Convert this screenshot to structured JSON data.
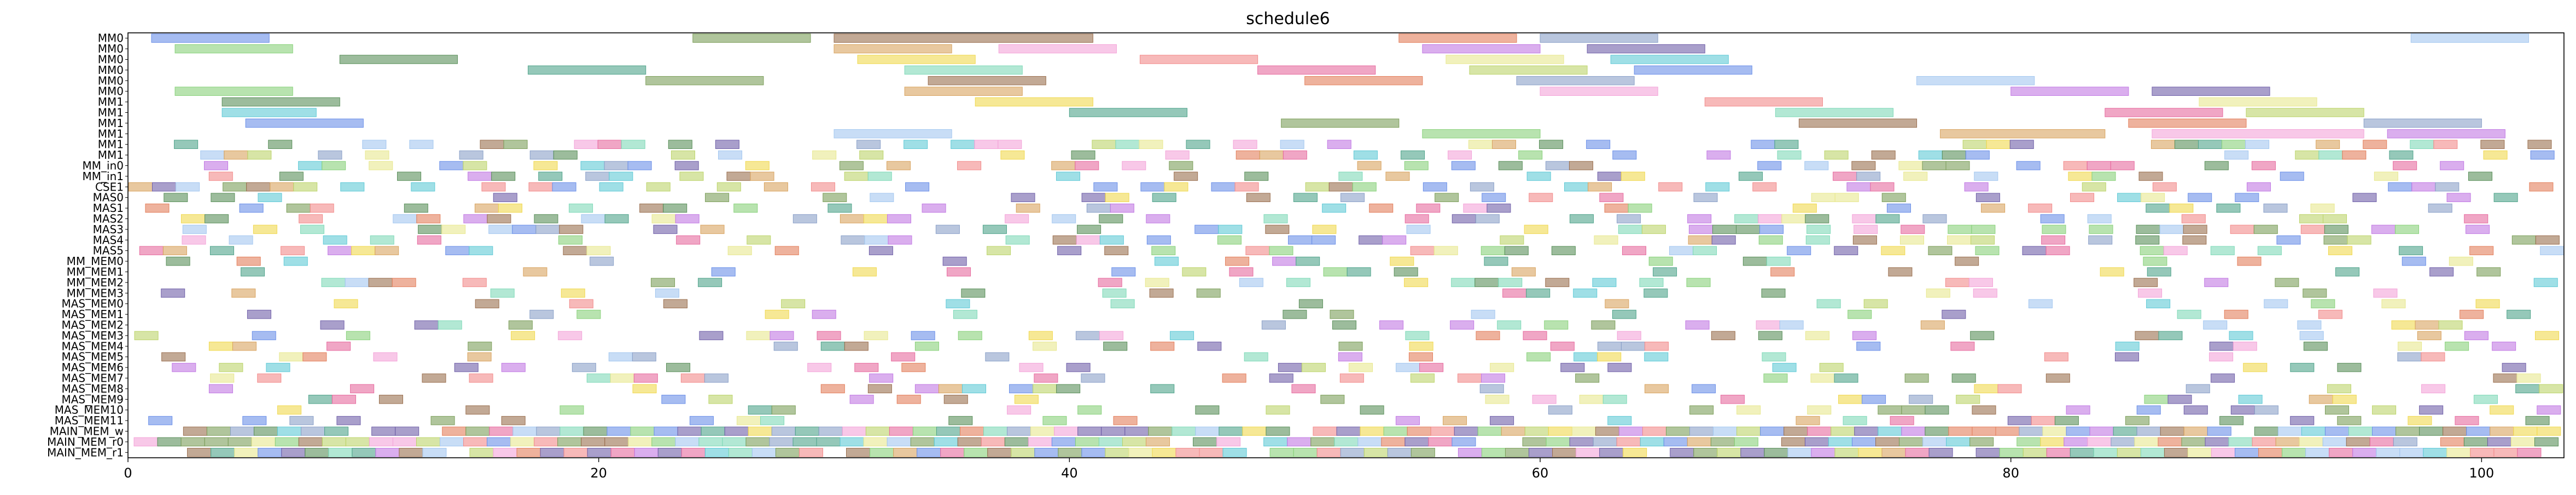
{
  "chart_data": {
    "type": "gantt",
    "title": "schedule6",
    "xlabel": "",
    "ylabel": "",
    "xlim": [
      0,
      103.5
    ],
    "grid": false,
    "legend": "none",
    "x_ticks": [
      0,
      20,
      40,
      60,
      80,
      100
    ],
    "rows": [
      "MM0",
      "MM0",
      "MM0",
      "MM0",
      "MM0",
      "MM0",
      "MM1",
      "MM1",
      "MM1",
      "MM1",
      "MM1",
      "MM1",
      "MM_in0",
      "MM_in1",
      "CSE1",
      "MAS0",
      "MAS1",
      "MAS2",
      "MAS3",
      "MAS4",
      "MAS5",
      "MM_MEM0",
      "MM_MEM1",
      "MM_MEM2",
      "MM_MEM3",
      "MAS_MEM0",
      "MAS_MEM1",
      "MAS_MEM2",
      "MAS_MEM3",
      "MAS_MEM4",
      "MAS_MEM5",
      "MAS_MEM6",
      "MAS_MEM7",
      "MAS_MEM8",
      "MAS_MEM9",
      "MAS_MEM10",
      "MAS_MEM11",
      "MAIN_MEM_w",
      "MAIN_MEM_r0",
      "MAIN_MEM_r1"
    ],
    "palette": [
      "#6a8fe8",
      "#e37f5c",
      "#88d17a",
      "#c178e3",
      "#f0d84f",
      "#5fc9d6",
      "#e66a9e",
      "#7c9e5a",
      "#8aa0c8",
      "#d8a35f",
      "#6f5fa8",
      "#f28b8b",
      "#4fa38a",
      "#bcd46a",
      "#9a6f4f",
      "#a3c7f0",
      "#f3a3d8",
      "#5a8f5a",
      "#e8e88f",
      "#7fd9b8"
    ],
    "bars": [
      {
        "row": 0,
        "start": 1,
        "end": 6
      },
      {
        "row": 0,
        "start": 24,
        "end": 29
      },
      {
        "row": 0,
        "start": 30,
        "end": 41
      },
      {
        "row": 0,
        "start": 54,
        "end": 59
      },
      {
        "row": 0,
        "start": 60,
        "end": 65
      },
      {
        "row": 0,
        "start": 97,
        "end": 102
      },
      {
        "row": 1,
        "start": 2,
        "end": 7
      },
      {
        "row": 1,
        "start": 30,
        "end": 35
      },
      {
        "row": 1,
        "start": 37,
        "end": 42
      },
      {
        "row": 1,
        "start": 55,
        "end": 60
      },
      {
        "row": 1,
        "start": 62,
        "end": 67
      },
      {
        "row": 2,
        "start": 9,
        "end": 14
      },
      {
        "row": 2,
        "start": 31,
        "end": 36
      },
      {
        "row": 2,
        "start": 43,
        "end": 48
      },
      {
        "row": 2,
        "start": 56,
        "end": 61
      },
      {
        "row": 2,
        "start": 63,
        "end": 68
      },
      {
        "row": 3,
        "start": 17,
        "end": 22
      },
      {
        "row": 3,
        "start": 33,
        "end": 38
      },
      {
        "row": 3,
        "start": 48,
        "end": 53
      },
      {
        "row": 3,
        "start": 57,
        "end": 62
      },
      {
        "row": 3,
        "start": 64,
        "end": 69
      },
      {
        "row": 4,
        "start": 22,
        "end": 27
      },
      {
        "row": 4,
        "start": 34,
        "end": 39
      },
      {
        "row": 4,
        "start": 50,
        "end": 55
      },
      {
        "row": 4,
        "start": 59,
        "end": 64
      },
      {
        "row": 4,
        "start": 76,
        "end": 81
      },
      {
        "row": 5,
        "start": 2,
        "end": 7
      },
      {
        "row": 5,
        "start": 33,
        "end": 38
      },
      {
        "row": 5,
        "start": 60,
        "end": 65
      },
      {
        "row": 5,
        "start": 80,
        "end": 85
      },
      {
        "row": 5,
        "start": 86,
        "end": 91
      },
      {
        "row": 6,
        "start": 4,
        "end": 9
      },
      {
        "row": 6,
        "start": 36,
        "end": 41
      },
      {
        "row": 6,
        "start": 67,
        "end": 72
      },
      {
        "row": 6,
        "start": 88,
        "end": 93
      },
      {
        "row": 7,
        "start": 4,
        "end": 8
      },
      {
        "row": 7,
        "start": 40,
        "end": 45
      },
      {
        "row": 7,
        "start": 70,
        "end": 75
      },
      {
        "row": 7,
        "start": 84,
        "end": 89
      },
      {
        "row": 7,
        "start": 90,
        "end": 95
      },
      {
        "row": 8,
        "start": 5,
        "end": 10
      },
      {
        "row": 8,
        "start": 49,
        "end": 54
      },
      {
        "row": 8,
        "start": 71,
        "end": 76
      },
      {
        "row": 8,
        "start": 85,
        "end": 90
      },
      {
        "row": 8,
        "start": 95,
        "end": 100
      },
      {
        "row": 9,
        "start": 30,
        "end": 35
      },
      {
        "row": 9,
        "start": 55,
        "end": 60
      },
      {
        "row": 9,
        "start": 77,
        "end": 84
      },
      {
        "row": 9,
        "start": 86,
        "end": 95
      },
      {
        "row": 9,
        "start": 96,
        "end": 101
      }
    ],
    "fill_rows_from": 10
  }
}
